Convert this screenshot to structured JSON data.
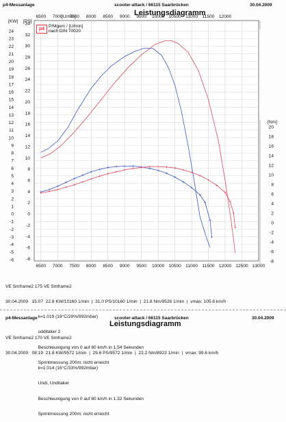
{
  "page1": {
    "header_left": "p4-Messanlage",
    "header_center": "scooter-attack  / 66115 Saarbrücken",
    "header_date": "30.04.2009",
    "title": "Leistungsdiagramm",
    "logo_text": "p4",
    "legend_line1": "P/Mgem / [U/min]",
    "legend_line2": "nach DIN 70020",
    "x_unit_label": "[U/min]",
    "y_left_units": [
      "[KW]",
      "[PS]"
    ],
    "y_right_unit": "[Nm]",
    "info_lines": [
      "VE Smframe2 175 VE Smframe2",
      "30.04.2009   15:07  22.8 KW/10160 1/min  |  31.0 PS/10160 1/min  |  21.8 Nm/9526 1/min  |  vmax: 105.8 km/h",
      "                          k=1.019 (19°C/29%/992mbar)",
      "                          udditaker 2",
      "                          Beschleunigung von 0 auf 80 km/h in 1.54 Sekunden",
      "                          Sprintmessung 200m: nicht erreicht"
    ]
  },
  "page2": {
    "header_left": "p4-Messanlage",
    "header_center": "scooter-attack  / 66115 Saarbrücken",
    "header_date": "30.04.2009",
    "title": "Leistungsdiagramm",
    "info_lines": [
      "VE Smframe2 170 VE Smframe2",
      "30.04.2009   08:19  21.8 KW/9572 1/min  |  29.6 PS/9572 1/min  |  22.2 Nm/8923 1/min  |  vmax: 99.6 km/h",
      "                          k=1.014 (16°C/33%/992mbar)",
      "                          Undi, Unditaker",
      "                          Beschleunigung von 0 auf 80 km/h in 1.32 Sekunden",
      "                          Sprintmessung 200m: nicht erreicht"
    ]
  },
  "chart_data": {
    "type": "line",
    "x_ticks": [
      6500,
      7000,
      7500,
      8000,
      8500,
      9000,
      9500,
      10000,
      10500,
      11000,
      11500,
      12000,
      12500,
      13000
    ],
    "x_top_ticks": [
      6500,
      7000,
      7500,
      8000,
      8500,
      9000,
      9500,
      10000,
      10500,
      11000,
      11500,
      12000
    ],
    "xlim": [
      6300,
      13000
    ],
    "kw_ticks": [
      -6,
      -5,
      -4,
      -3,
      -2,
      -1,
      0,
      1,
      2,
      3,
      4,
      5,
      6,
      7,
      8,
      9,
      10,
      11,
      12,
      13,
      14,
      15,
      16,
      17,
      18,
      19,
      20,
      21,
      22,
      23,
      24
    ],
    "ps_ticks": [
      -8,
      -6,
      -4,
      -2,
      0,
      2,
      4,
      6,
      8,
      10,
      12,
      14,
      16,
      18,
      20,
      22,
      24,
      26,
      28,
      30,
      32,
      34
    ],
    "ps_lim": [
      -8.4,
      34.5
    ],
    "nm_ticks": [
      -8,
      -6,
      -4,
      -2,
      0,
      2,
      4,
      6,
      8,
      10,
      12,
      14,
      16,
      18,
      20
    ],
    "grid": true,
    "colors": {
      "run_blue": "#3a57c4",
      "run_red": "#e0455a"
    },
    "series": [
      {
        "name": "",
        "color": "#3a57c4",
        "kind": "power_ps",
        "x": [
          6500,
          6700,
          7000,
          7300,
          7600,
          8000,
          8300,
          8600,
          9000,
          9300,
          9600,
          9850,
          10100,
          10300,
          10500,
          10700,
          10900,
          11100,
          11250,
          11400,
          11500,
          11550
        ],
        "y": [
          11.0,
          11.6,
          13.0,
          15.4,
          18.6,
          22.4,
          24.6,
          26.4,
          28.1,
          29.0,
          29.6,
          29.5,
          28.3,
          26.2,
          23.0,
          18.2,
          12.0,
          5.0,
          -0.5,
          -3.5,
          -5.2,
          -6.0
        ]
      },
      {
        "name": "",
        "color": "#e0455a",
        "kind": "power_ps",
        "x": [
          6500,
          6800,
          7100,
          7500,
          7900,
          8300,
          8700,
          9100,
          9500,
          9900,
          10200,
          10400,
          10600,
          10900,
          11200,
          11500,
          11800,
          12000,
          12150,
          12250,
          12300
        ],
        "y": [
          10.0,
          10.8,
          12.2,
          14.6,
          17.4,
          20.4,
          23.4,
          26.1,
          28.4,
          30.2,
          30.9,
          30.9,
          30.4,
          28.8,
          25.6,
          20.4,
          13.0,
          6.0,
          0.0,
          -4.5,
          -7.0
        ]
      },
      {
        "name": "",
        "color": "#3a57c4",
        "kind": "torque_nm",
        "x": [
          6500,
          6750,
          7000,
          7250,
          7500,
          7750,
          8000,
          8250,
          8500,
          8750,
          9000,
          9250,
          9500,
          9750,
          10000,
          10250,
          10500,
          10750,
          11000,
          11250,
          11400,
          11550,
          11600
        ],
        "y": [
          6.4,
          6.9,
          7.6,
          8.4,
          9.2,
          9.9,
          10.6,
          11.1,
          11.5,
          11.7,
          11.8,
          11.8,
          11.6,
          11.3,
          10.9,
          10.3,
          9.5,
          8.5,
          7.3,
          5.8,
          4.2,
          0.5,
          -3.0
        ]
      },
      {
        "name": "",
        "color": "#e0455a",
        "kind": "torque_nm",
        "x": [
          6500,
          6750,
          7000,
          7250,
          7500,
          7750,
          8000,
          8250,
          8500,
          8750,
          9000,
          9250,
          9500,
          9750,
          10000,
          10250,
          10500,
          10750,
          11000,
          11250,
          11500,
          11750,
          12000,
          12150,
          12250,
          12300
        ],
        "y": [
          6.2,
          6.5,
          6.9,
          7.4,
          7.9,
          8.5,
          9.1,
          9.7,
          10.2,
          10.6,
          11.0,
          11.3,
          11.5,
          11.7,
          11.7,
          11.6,
          11.4,
          11.0,
          10.5,
          9.8,
          8.9,
          7.8,
          6.3,
          4.4,
          2.0,
          -1.0
        ]
      }
    ]
  }
}
